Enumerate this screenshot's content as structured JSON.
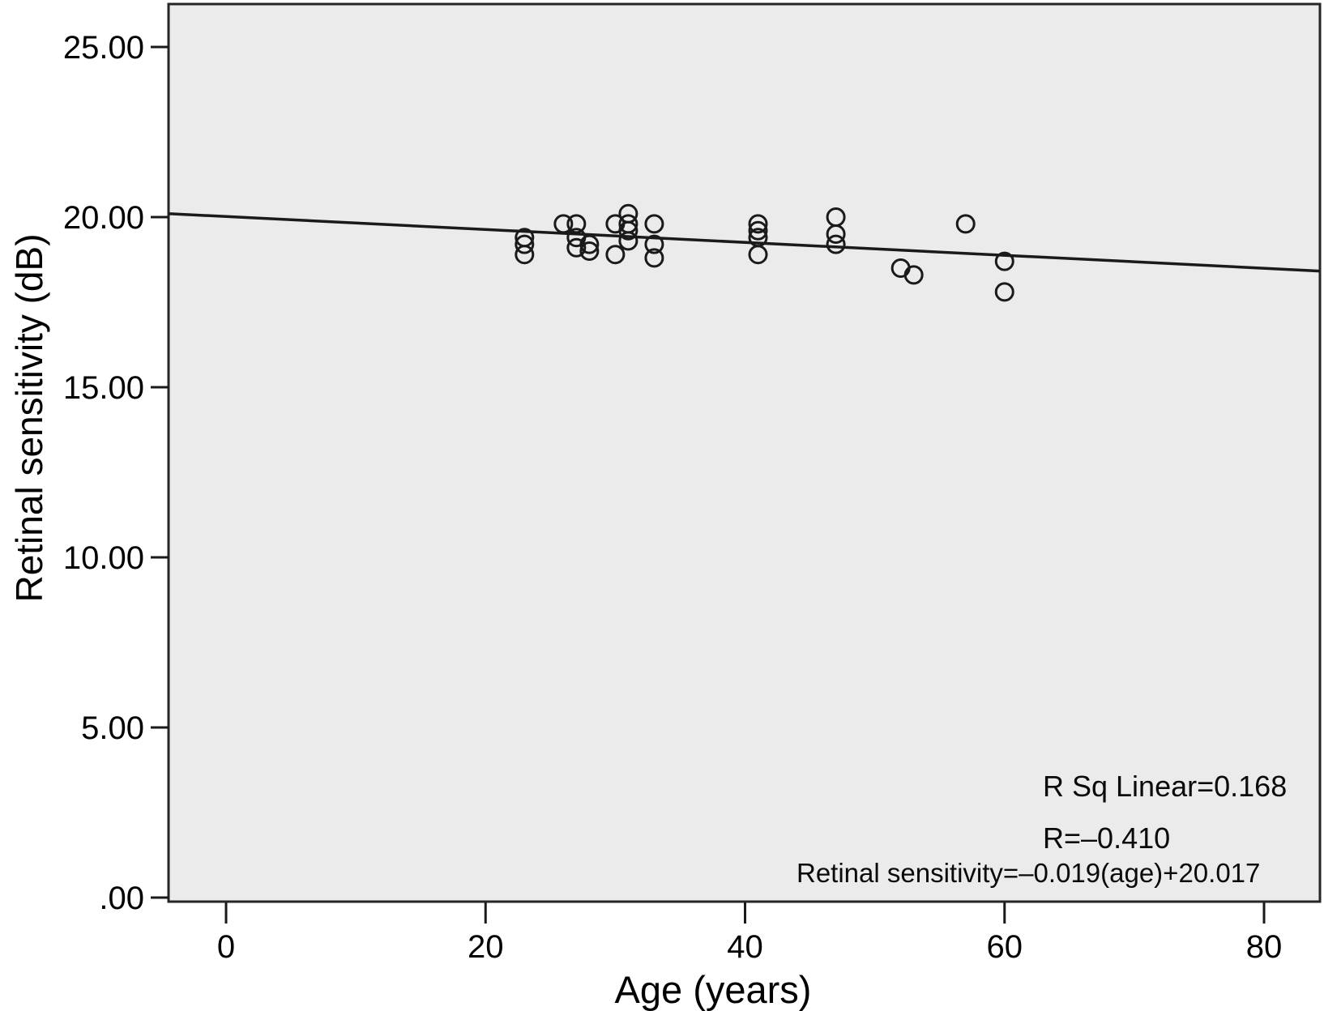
{
  "axes": {
    "y_title": "Retinal sensitivity (dB)",
    "x_title": "Age (years)"
  },
  "annotations": {
    "r_sq_label": "R Sq Linear=0.168",
    "r_label": "R=–0.410",
    "equation_label": "Retinal sensitivity=–0.019(age)+20.017"
  },
  "chart_data": {
    "type": "scatter",
    "title": "",
    "xlabel": "Age (years)",
    "ylabel": "Retinal sensitivity (dB)",
    "xlim": [
      -4.4,
      84.3
    ],
    "ylim": [
      -0.1,
      26.3
    ],
    "grid": false,
    "plot_background": "#ebebeb",
    "border_color": "#262626",
    "marker": {
      "shape": "open-circle",
      "color": "#1a1a1a",
      "radius_px": 10.5,
      "stroke_px": 3
    },
    "x_ticks": {
      "values": [
        0,
        20,
        40,
        60,
        80
      ],
      "labels": [
        "0",
        "20",
        "40",
        "60",
        "80"
      ]
    },
    "y_ticks": {
      "values": [
        0,
        5,
        10,
        15,
        20,
        25
      ],
      "labels": [
        ".00",
        "5.00",
        "10.00",
        "15.00",
        "20.00",
        "25.00"
      ]
    },
    "points": [
      {
        "age": 23,
        "sensitivity": 19.4
      },
      {
        "age": 23,
        "sensitivity": 19.2
      },
      {
        "age": 23,
        "sensitivity": 18.9
      },
      {
        "age": 26,
        "sensitivity": 19.8
      },
      {
        "age": 27,
        "sensitivity": 19.8
      },
      {
        "age": 27,
        "sensitivity": 19.4
      },
      {
        "age": 27,
        "sensitivity": 19.1
      },
      {
        "age": 28,
        "sensitivity": 19.2
      },
      {
        "age": 28,
        "sensitivity": 19.0
      },
      {
        "age": 30,
        "sensitivity": 19.8
      },
      {
        "age": 30,
        "sensitivity": 18.9
      },
      {
        "age": 31,
        "sensitivity": 20.1
      },
      {
        "age": 31,
        "sensitivity": 19.8
      },
      {
        "age": 31,
        "sensitivity": 19.6
      },
      {
        "age": 31,
        "sensitivity": 19.3
      },
      {
        "age": 33,
        "sensitivity": 19.8
      },
      {
        "age": 33,
        "sensitivity": 19.2
      },
      {
        "age": 33,
        "sensitivity": 18.8
      },
      {
        "age": 41,
        "sensitivity": 19.8
      },
      {
        "age": 41,
        "sensitivity": 19.6
      },
      {
        "age": 41,
        "sensitivity": 19.4
      },
      {
        "age": 41,
        "sensitivity": 18.9
      },
      {
        "age": 47,
        "sensitivity": 20.0
      },
      {
        "age": 47,
        "sensitivity": 19.5
      },
      {
        "age": 47,
        "sensitivity": 19.2
      },
      {
        "age": 52,
        "sensitivity": 18.5
      },
      {
        "age": 53,
        "sensitivity": 18.3
      },
      {
        "age": 57,
        "sensitivity": 19.8
      },
      {
        "age": 60,
        "sensitivity": 18.7
      },
      {
        "age": 60,
        "sensitivity": 17.8
      }
    ],
    "trendline": {
      "slope": -0.019,
      "intercept": 20.017
    },
    "stats": {
      "r": -0.41,
      "r_squared": 0.168
    },
    "annotation_texts": [
      "R Sq Linear=0.168",
      "R=–0.410",
      "Retinal sensitivity=–0.019(age)+20.017"
    ]
  }
}
